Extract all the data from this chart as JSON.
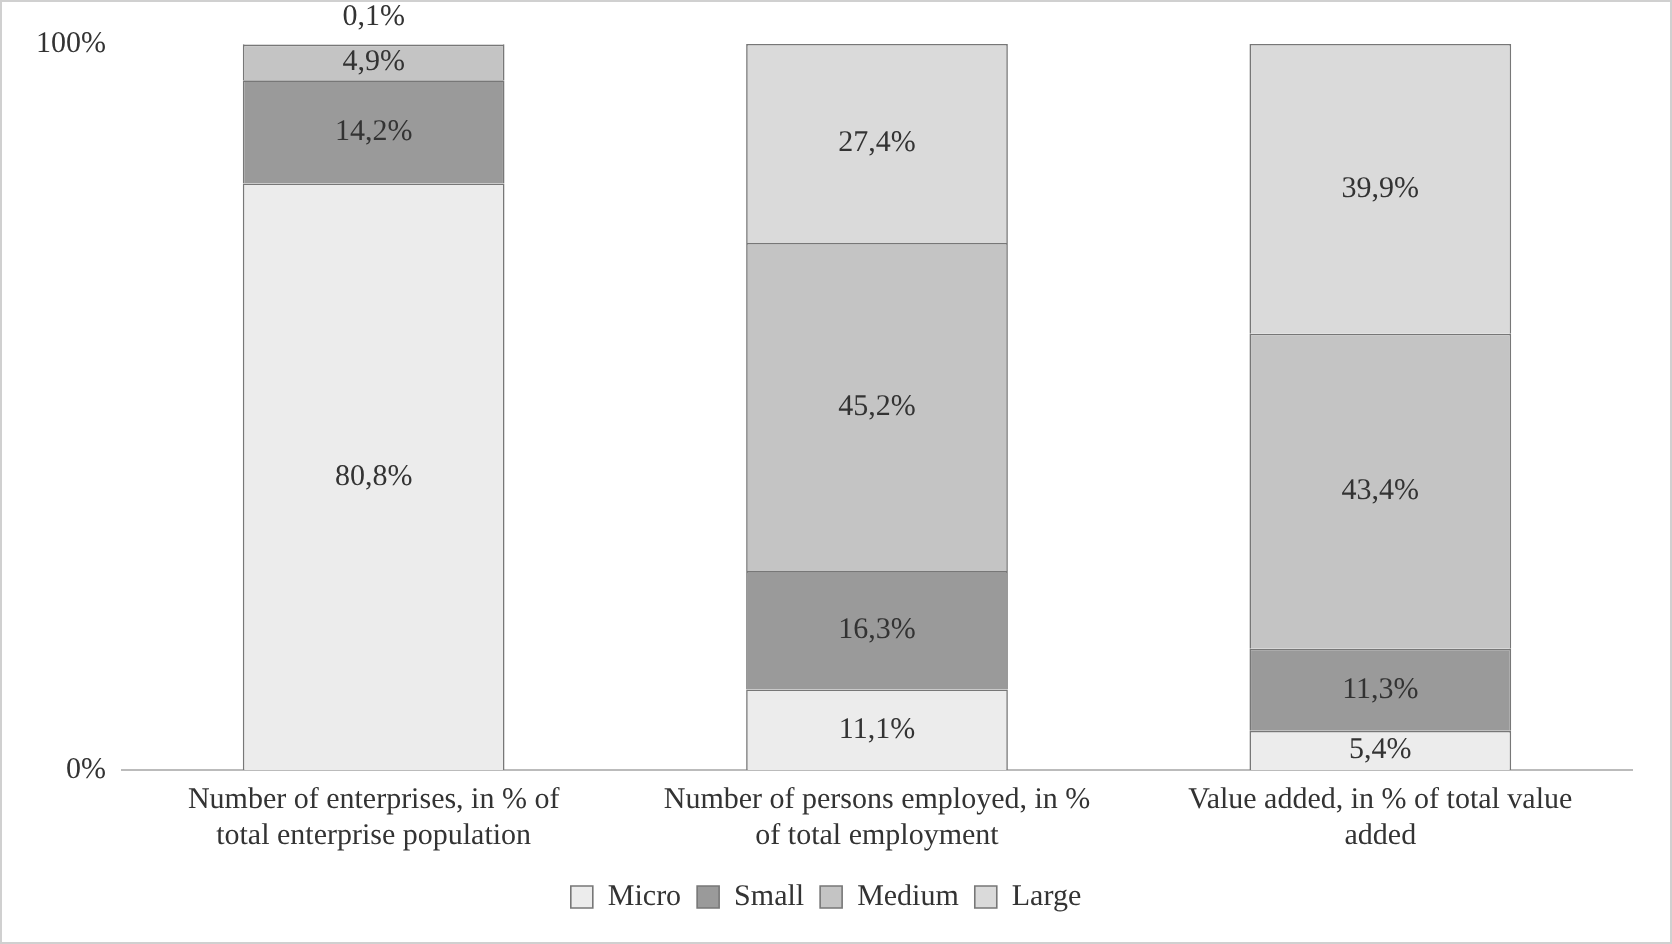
{
  "chart_data": {
    "type": "bar",
    "stacked": true,
    "categories": [
      "Number of enterprises, in % of total enterprise population",
      "Number of persons employed, in % of total employment",
      "Value added, in % of total value added"
    ],
    "series": [
      {
        "name": "Micro",
        "color": "#ececec",
        "values": [
          80.8,
          11.1,
          5.4
        ],
        "value_labels": [
          "80,8%",
          "11,1%",
          "5,4%"
        ]
      },
      {
        "name": "Small",
        "color": "#9a9a9a",
        "values": [
          14.2,
          16.3,
          11.3
        ],
        "value_labels": [
          "14,2%",
          "16,3%",
          "11,3%"
        ]
      },
      {
        "name": "Medium",
        "color": "#c4c4c4",
        "values": [
          4.9,
          45.2,
          43.4
        ],
        "value_labels": [
          "4,9%",
          "45,2%",
          "43,4%"
        ]
      },
      {
        "name": "Large",
        "color": "#dadada",
        "values": [
          0.1,
          27.4,
          39.9
        ],
        "value_labels": [
          "0,1%",
          "27,4%",
          "39,9%"
        ]
      }
    ],
    "ylim": [
      0,
      100
    ],
    "yticks": [
      {
        "value": 0,
        "label": "0%"
      },
      {
        "value": 100,
        "label": "100%"
      }
    ],
    "legend": "bottom"
  }
}
